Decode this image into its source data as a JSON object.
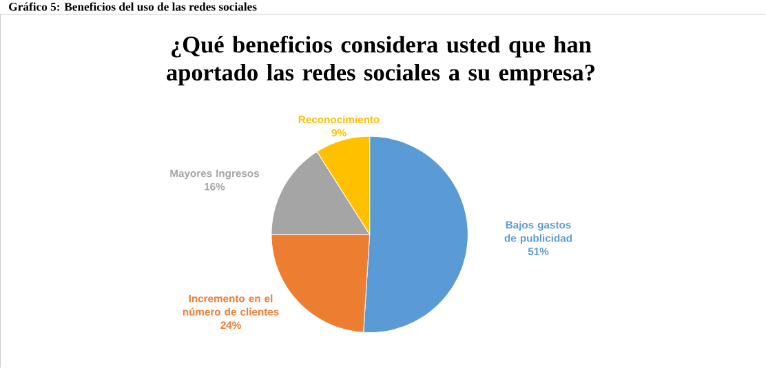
{
  "chart_data": {
    "type": "pie",
    "title": "¿Qué beneficios considera usted que han aportado las redes sociales a su empresa?",
    "annotations": [
      "Gráfico 5: Beneficios del uso de las redes sociales"
    ],
    "categories": [
      "Bajos gastos de publicidad",
      "Incremento en el número de clientes",
      "Mayores Ingresos",
      "Reconocimiento"
    ],
    "values": [
      51,
      24,
      16,
      9
    ],
    "colors": [
      "#5b9bd5",
      "#ed7d31",
      "#a5a5a5",
      "#ffc000"
    ],
    "value_labels": [
      "51%",
      "24%",
      "16%",
      "9%"
    ]
  }
}
